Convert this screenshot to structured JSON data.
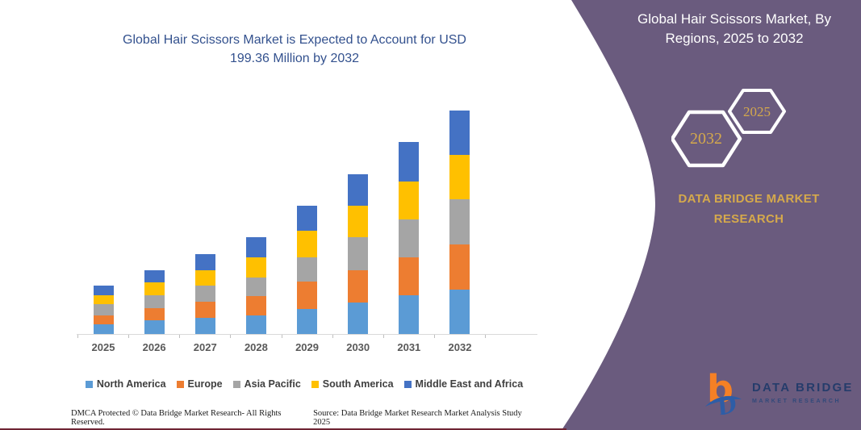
{
  "chart_data": {
    "type": "bar",
    "stacked": true,
    "title": "Global Hair Scissors Market is Expected to Account for USD 199.36 Million by 2032",
    "unit": "USD Million",
    "categories": [
      "2025",
      "2026",
      "2027",
      "2028",
      "2029",
      "2030",
      "2031",
      "2032"
    ],
    "series": [
      {
        "name": "North America",
        "color": "#5B9BD5",
        "values": [
          8.6,
          12.0,
          14.2,
          16.8,
          22.3,
          28.3,
          34.3,
          39.8
        ]
      },
      {
        "name": "Europe",
        "color": "#ED7D31",
        "values": [
          7.7,
          10.8,
          14.4,
          17.3,
          24.2,
          28.3,
          33.8,
          40.1
        ]
      },
      {
        "name": "Asia Pacific",
        "color": "#A5A5A5",
        "values": [
          10.3,
          11.8,
          14.9,
          16.1,
          21.6,
          29.5,
          34.1,
          40.1
        ]
      },
      {
        "name": "South America",
        "color": "#FFC000",
        "values": [
          7.9,
          11.5,
          13.7,
          18.0,
          24.0,
          28.3,
          34.1,
          39.8
        ]
      },
      {
        "name": "Middle East and Africa",
        "color": "#4472C4",
        "values": [
          8.6,
          10.6,
          13.9,
          18.0,
          22.3,
          28.1,
          34.8,
          39.6
        ]
      }
    ],
    "xlabel": "",
    "ylabel": "",
    "ylim": [
      0,
      210
    ],
    "grid": false,
    "y_axis_visible": false,
    "legend_position": "bottom",
    "axis_label_color": "#595959",
    "legend_text_color": "#3F3F3F",
    "axis_line_color": "#D9D9D9"
  },
  "left_section": {
    "title": "Global Hair Scissors Market is Expected to Account for USD 199.36 Million by 2032",
    "title_color": "#33518E",
    "footer_left": "DMCA Protected © Data Bridge Market Research-  All Rights Reserved.",
    "footer_right": "Source: Data Bridge Market Research  Market Analysis Study 2025",
    "bottom_line_color": "#6E2433"
  },
  "side_panel": {
    "bg_color": "#6A5B7E",
    "title": "Global Hair Scissors Market, By Regions, 2025 to 2032",
    "title_color": "#FFFFFF",
    "hexagon_front_label": "2032",
    "hexagon_back_label": "2025",
    "hexagon_text_color": "#D5A94C",
    "brand_text": "DATA BRIDGE MARKET RESEARCH",
    "brand_text_color": "#D5A94C"
  },
  "logo": {
    "line1": "DATA BRIDGE",
    "line2": "MARKET RESEARCH",
    "b_color": "#F58025",
    "d_color": "#2E5DA6"
  }
}
